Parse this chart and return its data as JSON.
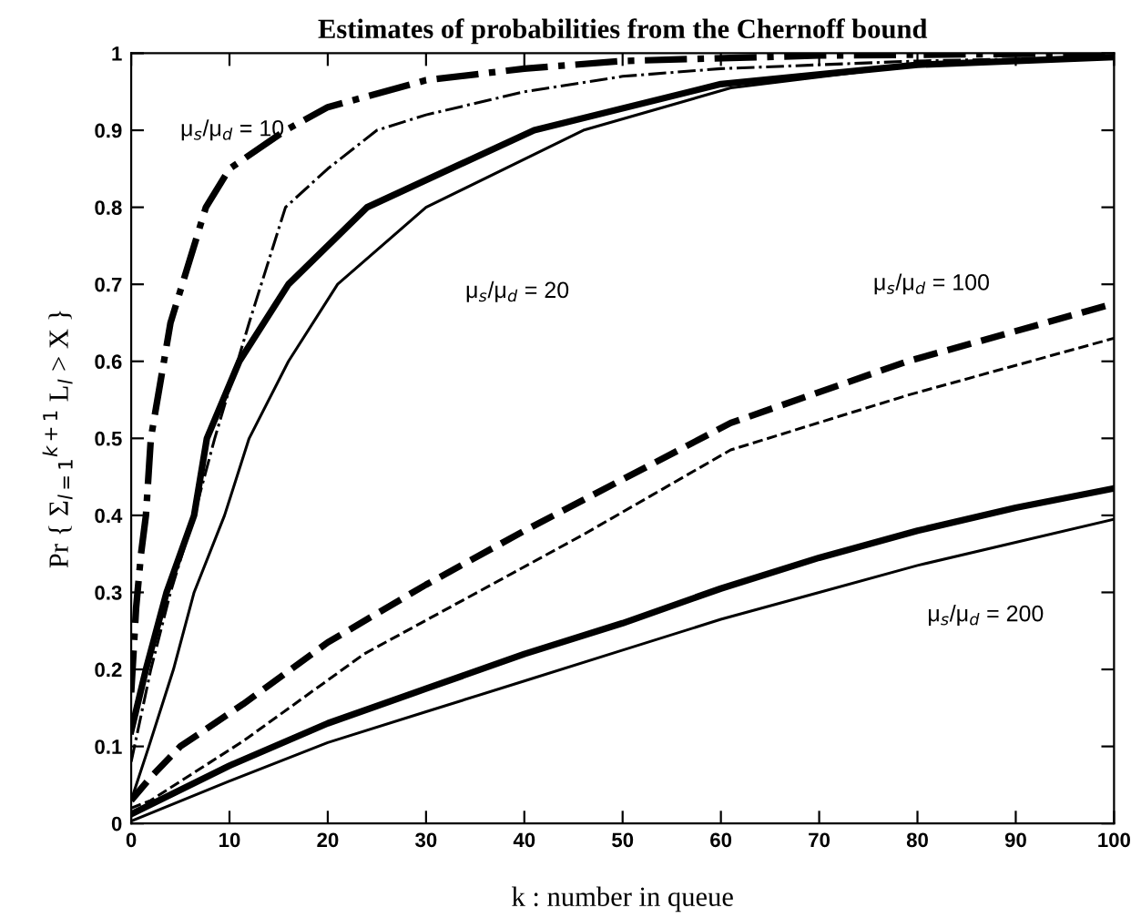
{
  "chart_data": {
    "type": "line",
    "title": "Estimates of probabilities from the Chernoff bound",
    "xlabel": "k : number in queue",
    "ylabel": "Pr { Σ$_{l=1}$$^{k+1}$ L$_{l}$ > X }",
    "xlim": [
      0,
      100
    ],
    "xticks": [
      0,
      10,
      20,
      30,
      40,
      50,
      60,
      70,
      80,
      90,
      100
    ],
    "ylim": [
      0,
      1
    ],
    "yticks": [
      0,
      0.1,
      0.2,
      0.3,
      0.4,
      0.5,
      0.6,
      0.7,
      0.8,
      0.9,
      1
    ],
    "grid": false,
    "marker": "none",
    "series": [
      {
        "color": "#000000",
        "line_style": "dashdot",
        "x": [
          0,
          0.5,
          1,
          1.5,
          2,
          4,
          7.6,
          10,
          15.7,
          20,
          30,
          40,
          50,
          70,
          100
        ],
        "values": [
          0.17,
          0.28,
          0.35,
          0.4,
          0.5,
          0.65,
          0.8,
          0.85,
          0.9,
          0.93,
          0.965,
          0.98,
          0.99,
          0.997,
          1.0
        ]
      },
      {
        "color": "#000000",
        "line_style": "dashdot",
        "x": [
          0,
          2,
          4,
          6.4,
          8.5,
          12,
          15.7,
          20,
          25,
          30,
          40,
          50,
          60,
          80,
          100
        ],
        "values": [
          0.08,
          0.2,
          0.3,
          0.4,
          0.5,
          0.65,
          0.8,
          0.85,
          0.9,
          0.92,
          0.95,
          0.97,
          0.98,
          0.99,
          0.995
        ]
      },
      {
        "color": "#000000",
        "line_style": "solid",
        "x": [
          0,
          1.5,
          3.6,
          6.4,
          7.7,
          11,
          16,
          24,
          41,
          60,
          80,
          100
        ],
        "values": [
          0.12,
          0.2,
          0.3,
          0.4,
          0.5,
          0.6,
          0.7,
          0.8,
          0.9,
          0.96,
          0.985,
          0.995
        ]
      },
      {
        "color": "#000000",
        "line_style": "solid",
        "x": [
          0,
          1.8,
          4.3,
          6.4,
          9.5,
          12,
          16,
          21,
          30,
          46,
          61,
          80,
          100
        ],
        "values": [
          0.03,
          0.1,
          0.2,
          0.3,
          0.4,
          0.5,
          0.6,
          0.7,
          0.8,
          0.9,
          0.955,
          0.985,
          0.995
        ]
      },
      {
        "color": "#000000",
        "line_style": "dashed",
        "x": [
          0,
          2,
          5,
          11.4,
          20,
          30,
          40,
          46,
          61,
          79,
          100
        ],
        "values": [
          0.03,
          0.06,
          0.1,
          0.155,
          0.235,
          0.31,
          0.38,
          0.42,
          0.52,
          0.6,
          0.675
        ]
      },
      {
        "color": "#000000",
        "line_style": "dashed",
        "x": [
          0,
          2,
          11.4,
          23.7,
          46,
          61,
          79,
          100
        ],
        "values": [
          0.02,
          0.03,
          0.107,
          0.22,
          0.375,
          0.485,
          0.556,
          0.63
        ]
      },
      {
        "color": "#000000",
        "line_style": "solid",
        "x": [
          0,
          10,
          20,
          30,
          40,
          50,
          60,
          70,
          80,
          90,
          100
        ],
        "values": [
          0.012,
          0.075,
          0.13,
          0.175,
          0.22,
          0.26,
          0.305,
          0.345,
          0.38,
          0.41,
          0.435
        ]
      },
      {
        "color": "#000000",
        "line_style": "solid",
        "x": [
          0,
          10,
          20,
          30,
          40,
          50,
          60,
          70,
          80,
          90,
          100
        ],
        "values": [
          0.003,
          0.055,
          0.105,
          0.145,
          0.185,
          0.225,
          0.265,
          0.3,
          0.335,
          0.365,
          0.395
        ]
      }
    ],
    "annotations": [
      "μ$_{s}$/μ$_{d}$ = 10",
      "μ$_{s}$/μ$_{d}$ = 20",
      "μ$_{s}$/μ$_{d}$ = 100",
      "μ$_{s}$/μ$_{d}$ = 200"
    ]
  }
}
